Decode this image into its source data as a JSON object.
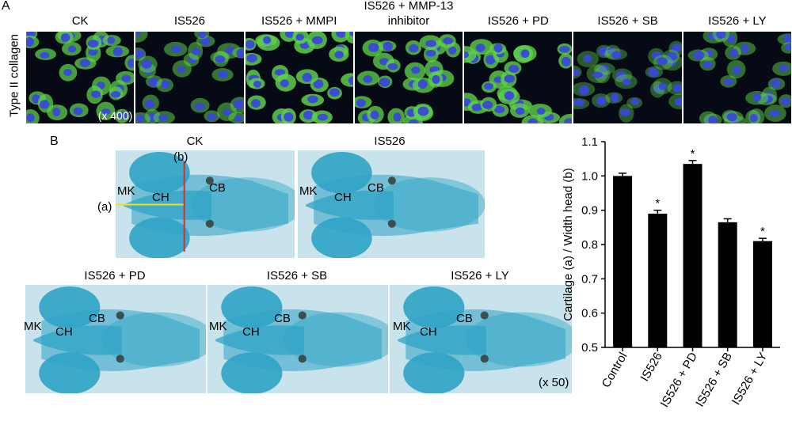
{
  "figure": {
    "panel_a_letter": "A",
    "panel_b_letter": "B",
    "panel_a_ylabel": "Type II collagen",
    "panel_a_columns": [
      {
        "title": "CK",
        "brightness": 0.75
      },
      {
        "title": "IS526",
        "brightness": 0.45
      },
      {
        "title": "IS526 + MMPI",
        "brightness": 0.9
      },
      {
        "title": "IS526 + MMP-13\ninhibitor",
        "brightness": 0.8
      },
      {
        "title": "IS526 + PD",
        "brightness": 0.85
      },
      {
        "title": "IS526 + SB",
        "brightness": 0.25
      },
      {
        "title": "IS526 + LY",
        "brightness": 0.4
      }
    ],
    "panel_a_magnification": "(x 400)",
    "panel_b_top_titles": [
      "CK",
      "IS526"
    ],
    "panel_b_bottom_titles": [
      "IS526 + PD",
      "IS526 + SB",
      "IS526 + LY"
    ],
    "panel_b_magnification": "(x 50)",
    "fish_labels": {
      "mk": "MK",
      "ch": "CH",
      "cb": "CB",
      "a": "(a)",
      "b": "(b)"
    },
    "colors": {
      "fish_blue": "#2fa3c6",
      "fish_bg": "#c8e3ec",
      "nucleus_blue": "#3a48d8",
      "collagen_green": "#5fd14a",
      "measure_yellow": "#f0e020",
      "measure_red": "#d03030"
    }
  },
  "chart_data": {
    "type": "bar",
    "categories": [
      "Control",
      "IS526",
      "IS526 + PD",
      "IS526 + SB",
      "IS526 + LY"
    ],
    "values": [
      1.0,
      0.89,
      1.035,
      0.865,
      0.81
    ],
    "errors": [
      0.008,
      0.01,
      0.01,
      0.01,
      0.008
    ],
    "significant": [
      false,
      true,
      true,
      false,
      true
    ],
    "sig_marker": "*",
    "ylabel": "Cartilage (a) / Width head (b)",
    "ylim": [
      0.5,
      1.1
    ],
    "yticks": [
      "0.5",
      "0.6",
      "0.7",
      "0.8",
      "0.9",
      "1.0",
      "1.1"
    ],
    "bar_color": "#000000"
  }
}
